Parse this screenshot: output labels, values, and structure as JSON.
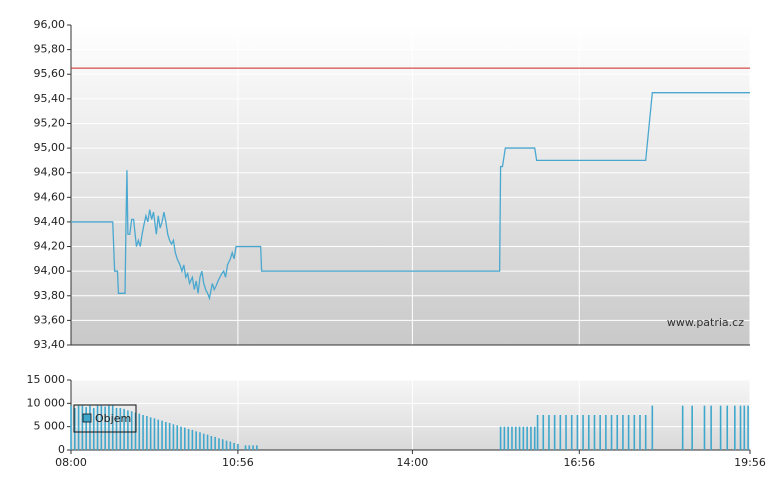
{
  "chart_data": [
    {
      "type": "line",
      "color": "#4aa8d0",
      "reference_line": 95.65,
      "reference_color": "#cc2222",
      "watermark": "www.patria.cz",
      "xlim": [
        480,
        1196
      ],
      "ylim": [
        93.4,
        96.0
      ],
      "yticks": [
        {
          "value": 93.4,
          "label": "93,40"
        },
        {
          "value": 93.6,
          "label": "93,60"
        },
        {
          "value": 93.8,
          "label": "93,80"
        },
        {
          "value": 94.0,
          "label": "94,00"
        },
        {
          "value": 94.2,
          "label": "94,20"
        },
        {
          "value": 94.4,
          "label": "94,40"
        },
        {
          "value": 94.6,
          "label": "94,60"
        },
        {
          "value": 94.8,
          "label": "94,80"
        },
        {
          "value": 95.0,
          "label": "95,00"
        },
        {
          "value": 95.2,
          "label": "95,20"
        },
        {
          "value": 95.4,
          "label": "95,40"
        },
        {
          "value": 95.6,
          "label": "95,60"
        },
        {
          "value": 95.8,
          "label": "95,80"
        },
        {
          "value": 96.0,
          "label": "96,00"
        }
      ],
      "x": [
        480,
        524,
        526,
        529,
        530,
        537,
        538,
        539,
        540,
        542,
        544,
        546,
        549,
        551,
        553,
        555,
        557,
        559,
        561,
        563,
        565,
        567,
        570,
        572,
        574,
        576,
        578,
        580,
        582,
        584,
        586,
        588,
        590,
        592,
        595,
        597,
        599,
        601,
        603,
        605,
        608,
        610,
        612,
        614,
        616,
        618,
        620,
        622,
        624,
        626,
        629,
        631,
        633,
        635,
        637,
        639,
        641,
        643,
        645,
        648,
        650,
        652,
        654,
        656,
        680,
        681,
        932,
        933,
        935,
        938,
        969,
        971,
        1086,
        1093,
        1196
      ],
      "values": [
        94.4,
        94.4,
        94.0,
        94.0,
        93.82,
        93.82,
        94.4,
        94.82,
        94.3,
        94.3,
        94.42,
        94.42,
        94.2,
        94.25,
        94.2,
        94.3,
        94.38,
        94.45,
        94.4,
        94.5,
        94.42,
        94.48,
        94.3,
        94.45,
        94.35,
        94.4,
        94.48,
        94.4,
        94.3,
        94.25,
        94.22,
        94.25,
        94.15,
        94.1,
        94.05,
        94.0,
        94.05,
        93.95,
        93.98,
        93.9,
        93.95,
        93.85,
        93.92,
        93.82,
        93.95,
        94.0,
        93.9,
        93.85,
        93.82,
        93.78,
        93.9,
        93.85,
        93.88,
        93.92,
        93.95,
        93.98,
        94.0,
        93.95,
        94.05,
        94.1,
        94.15,
        94.1,
        94.2,
        94.2,
        94.2,
        94.0,
        94.0,
        94.85,
        94.85,
        95.0,
        95.0,
        94.9,
        94.9,
        95.45,
        95.45
      ]
    },
    {
      "type": "bar",
      "xlim": [
        480,
        1196
      ],
      "xticks": [
        {
          "value": 480,
          "label": "08:00"
        },
        {
          "value": 656,
          "label": "10:56"
        },
        {
          "value": 840,
          "label": "14:00"
        },
        {
          "value": 1016,
          "label": "16:56"
        },
        {
          "value": 1196,
          "label": "19:56"
        }
      ],
      "ylim": [
        0,
        15000
      ],
      "yticks": [
        0,
        {
          "value": 5000,
          "label": "5 000"
        },
        {
          "value": 10000,
          "label": "10 000"
        },
        {
          "value": 15000,
          "label": "15 000"
        }
      ],
      "x": [
        480,
        484,
        488,
        492,
        496,
        500,
        504,
        508,
        512,
        516,
        520,
        524,
        528,
        532,
        536,
        540,
        544,
        548,
        552,
        556,
        560,
        564,
        568,
        572,
        576,
        580,
        584,
        588,
        592,
        596,
        600,
        604,
        608,
        612,
        616,
        620,
        624,
        628,
        632,
        636,
        640,
        644,
        648,
        652,
        656,
        664,
        668,
        672,
        676,
        933,
        937,
        941,
        945,
        949,
        953,
        957,
        961,
        965,
        969,
        972,
        978,
        984,
        990,
        996,
        1002,
        1008,
        1014,
        1020,
        1026,
        1032,
        1038,
        1044,
        1050,
        1056,
        1062,
        1068,
        1074,
        1080,
        1086,
        1093,
        1125,
        1135,
        1148,
        1155,
        1165,
        1172,
        1180,
        1186,
        1190,
        1194
      ],
      "series": [
        {
          "name": "Objem",
          "color": "#3fa7cc",
          "values": [
            9500,
            9000,
            9500,
            9500,
            9200,
            9500,
            9000,
            9500,
            9500,
            9300,
            9500,
            9500,
            9000,
            9000,
            8800,
            8500,
            8300,
            8000,
            7800,
            7500,
            7300,
            7000,
            6800,
            6500,
            6300,
            6000,
            5800,
            5500,
            5300,
            5000,
            4800,
            4500,
            4300,
            4000,
            3800,
            3500,
            3300,
            3000,
            2800,
            2500,
            2300,
            2000,
            1800,
            1500,
            1300,
            1000,
            1000,
            1000,
            1000,
            5000,
            5000,
            5000,
            5000,
            5000,
            5000,
            5000,
            5000,
            5000,
            5000,
            7500,
            7500,
            7500,
            7500,
            7500,
            7500,
            7500,
            7500,
            7500,
            7500,
            7500,
            7500,
            7500,
            7500,
            7500,
            7500,
            7500,
            7500,
            7500,
            7500,
            9500,
            9500,
            9500,
            9500,
            9500,
            9500,
            9500,
            9500,
            9500,
            9500,
            9500
          ]
        }
      ]
    }
  ]
}
